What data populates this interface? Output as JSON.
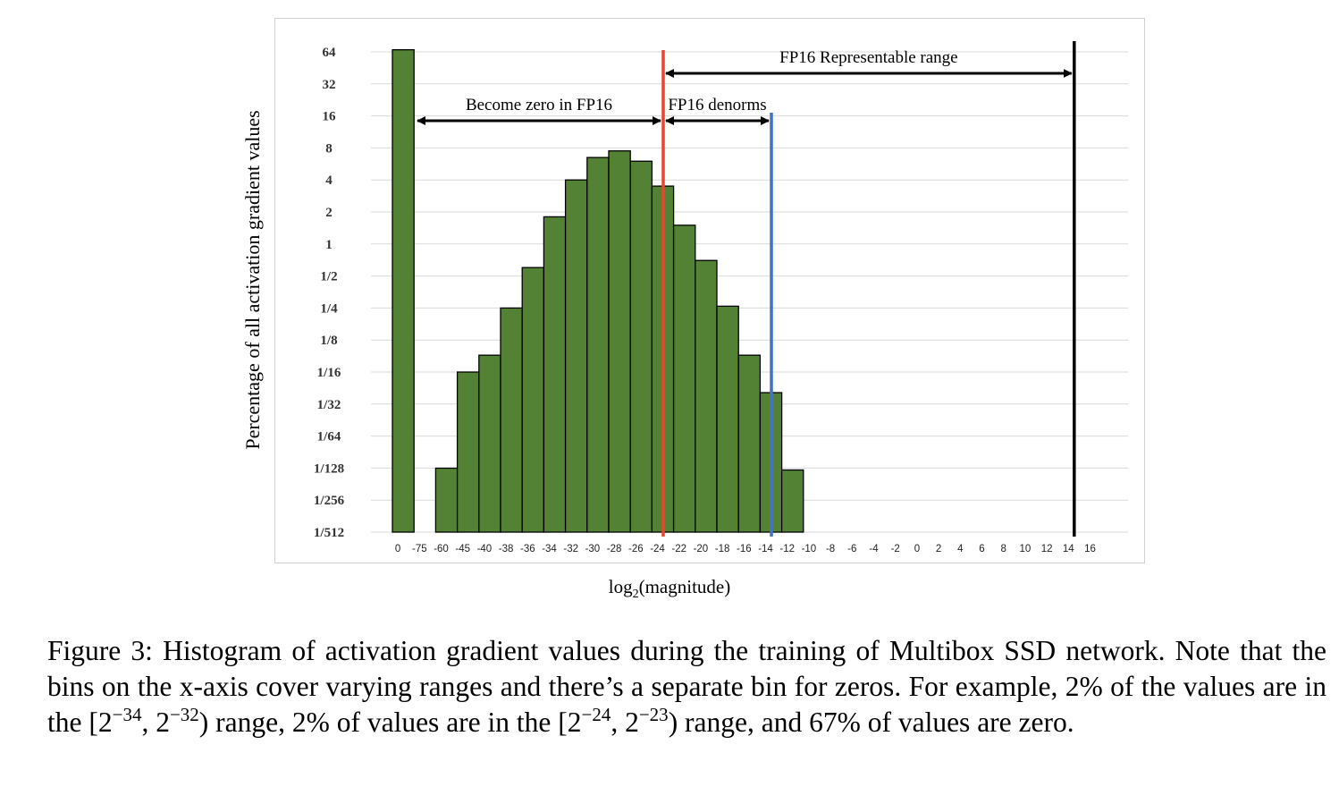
{
  "chart_data": {
    "type": "bar",
    "ylabel": "Percentage of all activation gradient values",
    "xlabel_base": "log",
    "xlabel_sub": "2",
    "xlabel_rest": "(magnitude)",
    "y_scale": "log2",
    "y_ticks": [
      {
        "label": "1/512",
        "exp": -9
      },
      {
        "label": "1/256",
        "exp": -8
      },
      {
        "label": "1/128",
        "exp": -7
      },
      {
        "label": "1/64",
        "exp": -6
      },
      {
        "label": "1/32",
        "exp": -5
      },
      {
        "label": "1/16",
        "exp": -4
      },
      {
        "label": "1/8",
        "exp": -3
      },
      {
        "label": "1/4",
        "exp": -2
      },
      {
        "label": "1/2",
        "exp": -1
      },
      {
        "label": "1",
        "exp": 0
      },
      {
        "label": "2",
        "exp": 1
      },
      {
        "label": "4",
        "exp": 2
      },
      {
        "label": "8",
        "exp": 3
      },
      {
        "label": "16",
        "exp": 4
      },
      {
        "label": "32",
        "exp": 5
      },
      {
        "label": "64",
        "exp": 6
      }
    ],
    "x_tick_labels": [
      "0",
      "-75",
      "-60",
      "-45",
      "-40",
      "-38",
      "-36",
      "-34",
      "-32",
      "-30",
      "-28",
      "-26",
      "-24",
      "-22",
      "-20",
      "-18",
      "-16",
      "-14",
      "-12",
      "-10",
      "-8",
      "-6",
      "-4",
      "-2",
      "0",
      "2",
      "4",
      "6",
      "8",
      "10",
      "12",
      "14",
      "16"
    ],
    "values": [
      67,
      0,
      0.0078,
      0.0625,
      0.09,
      0.25,
      0.6,
      1.8,
      4,
      6.5,
      7.5,
      6,
      3.5,
      1.5,
      0.7,
      0.26,
      0.09,
      0.04,
      0.0075,
      0,
      0,
      0,
      0,
      0,
      0,
      0,
      0,
      0,
      0,
      0,
      0,
      0
    ],
    "bar_color": "#548235",
    "grid": true,
    "annotations": [
      {
        "text": "FP16 Representable range",
        "from_tick": "-24",
        "to_tick": "14"
      },
      {
        "text": "Become zero in FP16",
        "from_tick": "-75",
        "to_tick": "-24"
      },
      {
        "text": "FP16 denorms",
        "from_tick": "-24",
        "to_tick": "-14"
      }
    ],
    "vertical_lines": [
      {
        "at_tick": "-24",
        "color": "#e8462d"
      },
      {
        "at_tick": "-14",
        "color": "#4472c4"
      },
      {
        "at_tick": "14",
        "color": "#000000"
      }
    ]
  },
  "caption": {
    "label": "Figure 3:",
    "text_1": "Histogram of activation gradient values during the training of Multibox SSD network. Note that the bins on the x-axis cover varying ranges and there’s a separate bin for zeros. For example, 2% of the values are in the [2",
    "sup_1": "−34",
    "text_2": ", 2",
    "sup_2": "−32",
    "text_3": ") range, 2% of values are in the [2",
    "sup_3": "−24",
    "text_4": ", 2",
    "sup_4": "−23",
    "text_5": ") range, and 67% of values are zero."
  }
}
